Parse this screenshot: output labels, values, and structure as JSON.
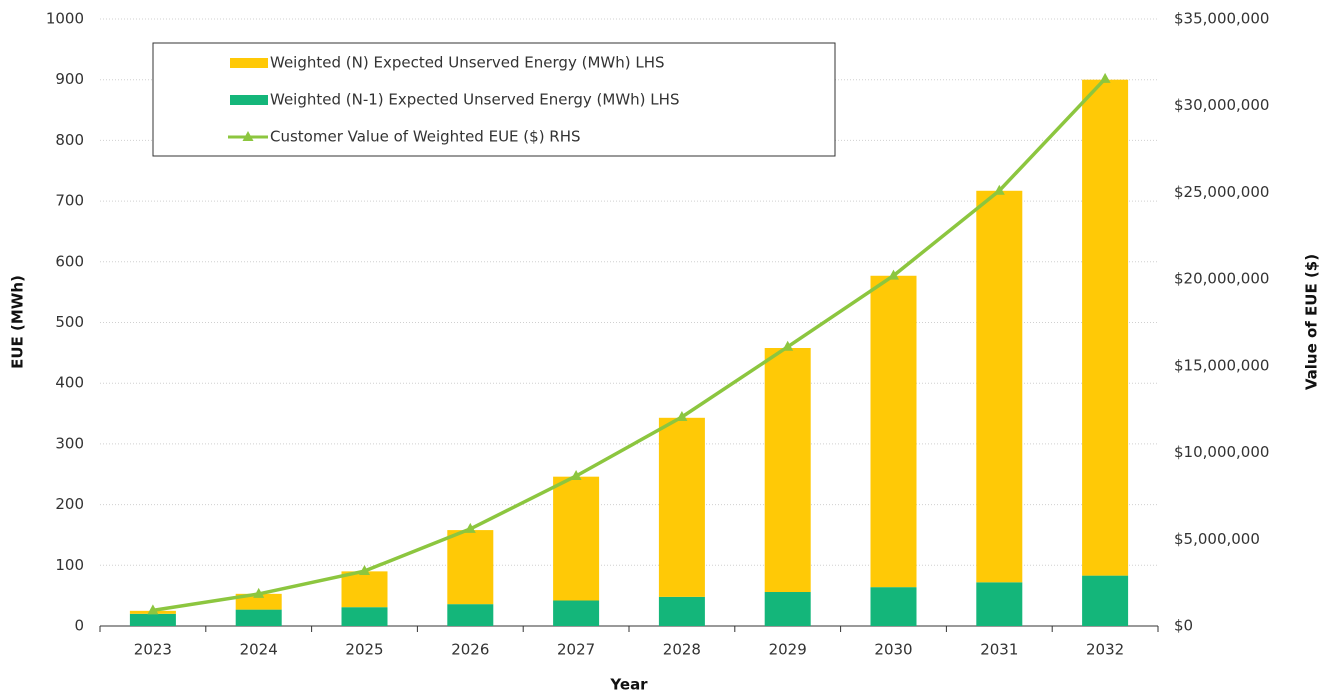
{
  "chart_data": {
    "type": "bar",
    "x_label": "Year",
    "y_label": "EUE (MWh)",
    "y2_label": "Value of EUE ($)",
    "categories": [
      "2023",
      "2024",
      "2025",
      "2026",
      "2027",
      "2028",
      "2029",
      "2030",
      "2031",
      "2032"
    ],
    "stacked": true,
    "series": [
      {
        "name": "Weighted (N-1) Expected Unserved Energy (MWh) LHS",
        "color": "#14b67a",
        "type": "bar",
        "values": [
          20,
          27,
          31,
          36,
          42,
          48,
          56,
          64,
          72,
          83
        ]
      },
      {
        "name": "Weighted (N) Expected Unserved Energy (MWh) LHS",
        "color": "#ffc906",
        "type": "bar",
        "values": [
          5,
          26,
          59,
          122,
          204,
          295,
          402,
          513,
          645,
          817
        ]
      },
      {
        "name": "Customer Value of Weighted EUE ($) RHS",
        "color": "#8cc63f",
        "type": "line",
        "axis": "y2",
        "values": [
          900000,
          1850000,
          3170000,
          5600000,
          8650000,
          12050000,
          16100000,
          20200000,
          25100000,
          31550000
        ]
      }
    ],
    "legend_order": [
      1,
      0,
      2
    ],
    "ylim": [
      0,
      1000
    ],
    "yticks": [
      0,
      100,
      200,
      300,
      400,
      500,
      600,
      700,
      800,
      900,
      1000
    ],
    "y2lim": [
      0,
      35000000
    ],
    "y2ticks": [
      {
        "value": 0,
        "label": "$0"
      },
      {
        "value": 5000000,
        "label": "$5,000,000"
      },
      {
        "value": 10000000,
        "label": "$10,000,000"
      },
      {
        "value": 15000000,
        "label": "$15,000,000"
      },
      {
        "value": 20000000,
        "label": "$20,000,000"
      },
      {
        "value": 25000000,
        "label": "$25,000,000"
      },
      {
        "value": 30000000,
        "label": "$30,000,000"
      },
      {
        "value": 35000000,
        "label": "$35,000,000"
      }
    ],
    "grid": true,
    "legend": "upper left"
  }
}
